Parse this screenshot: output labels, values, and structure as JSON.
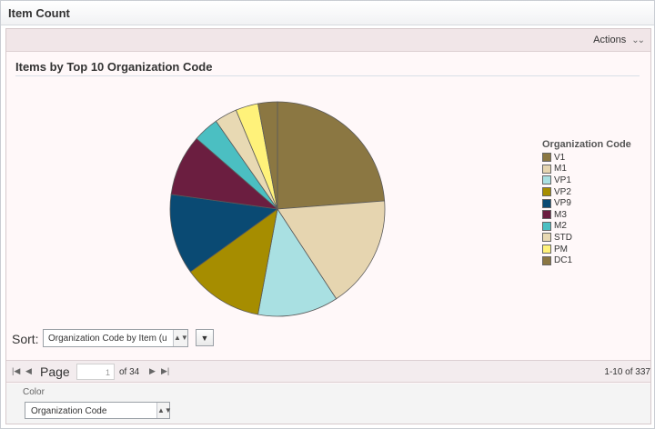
{
  "window": {
    "title": "Item Count"
  },
  "toolbar": {
    "actions_label": "Actions",
    "actions_chevron": "»"
  },
  "chart_data": {
    "type": "pie",
    "title": "Items by Top 10 Organization Code",
    "legend_title": "Organization Code",
    "legend_position": "right",
    "categories": [
      "V1",
      "M1",
      "VP1",
      "VP2",
      "VP9",
      "M2",
      "M3",
      "STD",
      "PM",
      "DC1"
    ],
    "slice_order": [
      "V1",
      "M1",
      "VP1",
      "VP2",
      "VP9",
      "M3",
      "M2",
      "STD",
      "PM",
      "DC1"
    ],
    "values": [
      24.5,
      17.5,
      12.5,
      12.5,
      12.5,
      4.0,
      9.5,
      3.5,
      3.5,
      3.0
    ],
    "colors": {
      "V1": "#8b7742",
      "M1": "#e6d5b0",
      "VP1": "#a9e0e2",
      "VP2": "#a68d00",
      "VP9": "#0a4a73",
      "M3": "#6b1e40",
      "M2": "#4bbfc2",
      "STD": "#e8d9b3",
      "PM": "#fff27a",
      "DC1": "#8b7742"
    }
  },
  "legend_items": [
    "V1",
    "M1",
    "VP1",
    "VP2",
    "VP9",
    "M3",
    "M2",
    "STD",
    "PM",
    "DC1"
  ],
  "sort": {
    "label": "Sort:",
    "value": "Organization Code by Item (u",
    "arrow": "↕",
    "direction_icon": "▼"
  },
  "pager": {
    "first_icon": "|◀",
    "prev_icon": "◀",
    "label": "Page",
    "current": "1",
    "of_text": "of 34",
    "next_icon": "▶",
    "last_icon": "▶|",
    "range": "1-10 of 337"
  },
  "color": {
    "label": "Color",
    "value": "Organization Code",
    "arrow": "↕"
  }
}
